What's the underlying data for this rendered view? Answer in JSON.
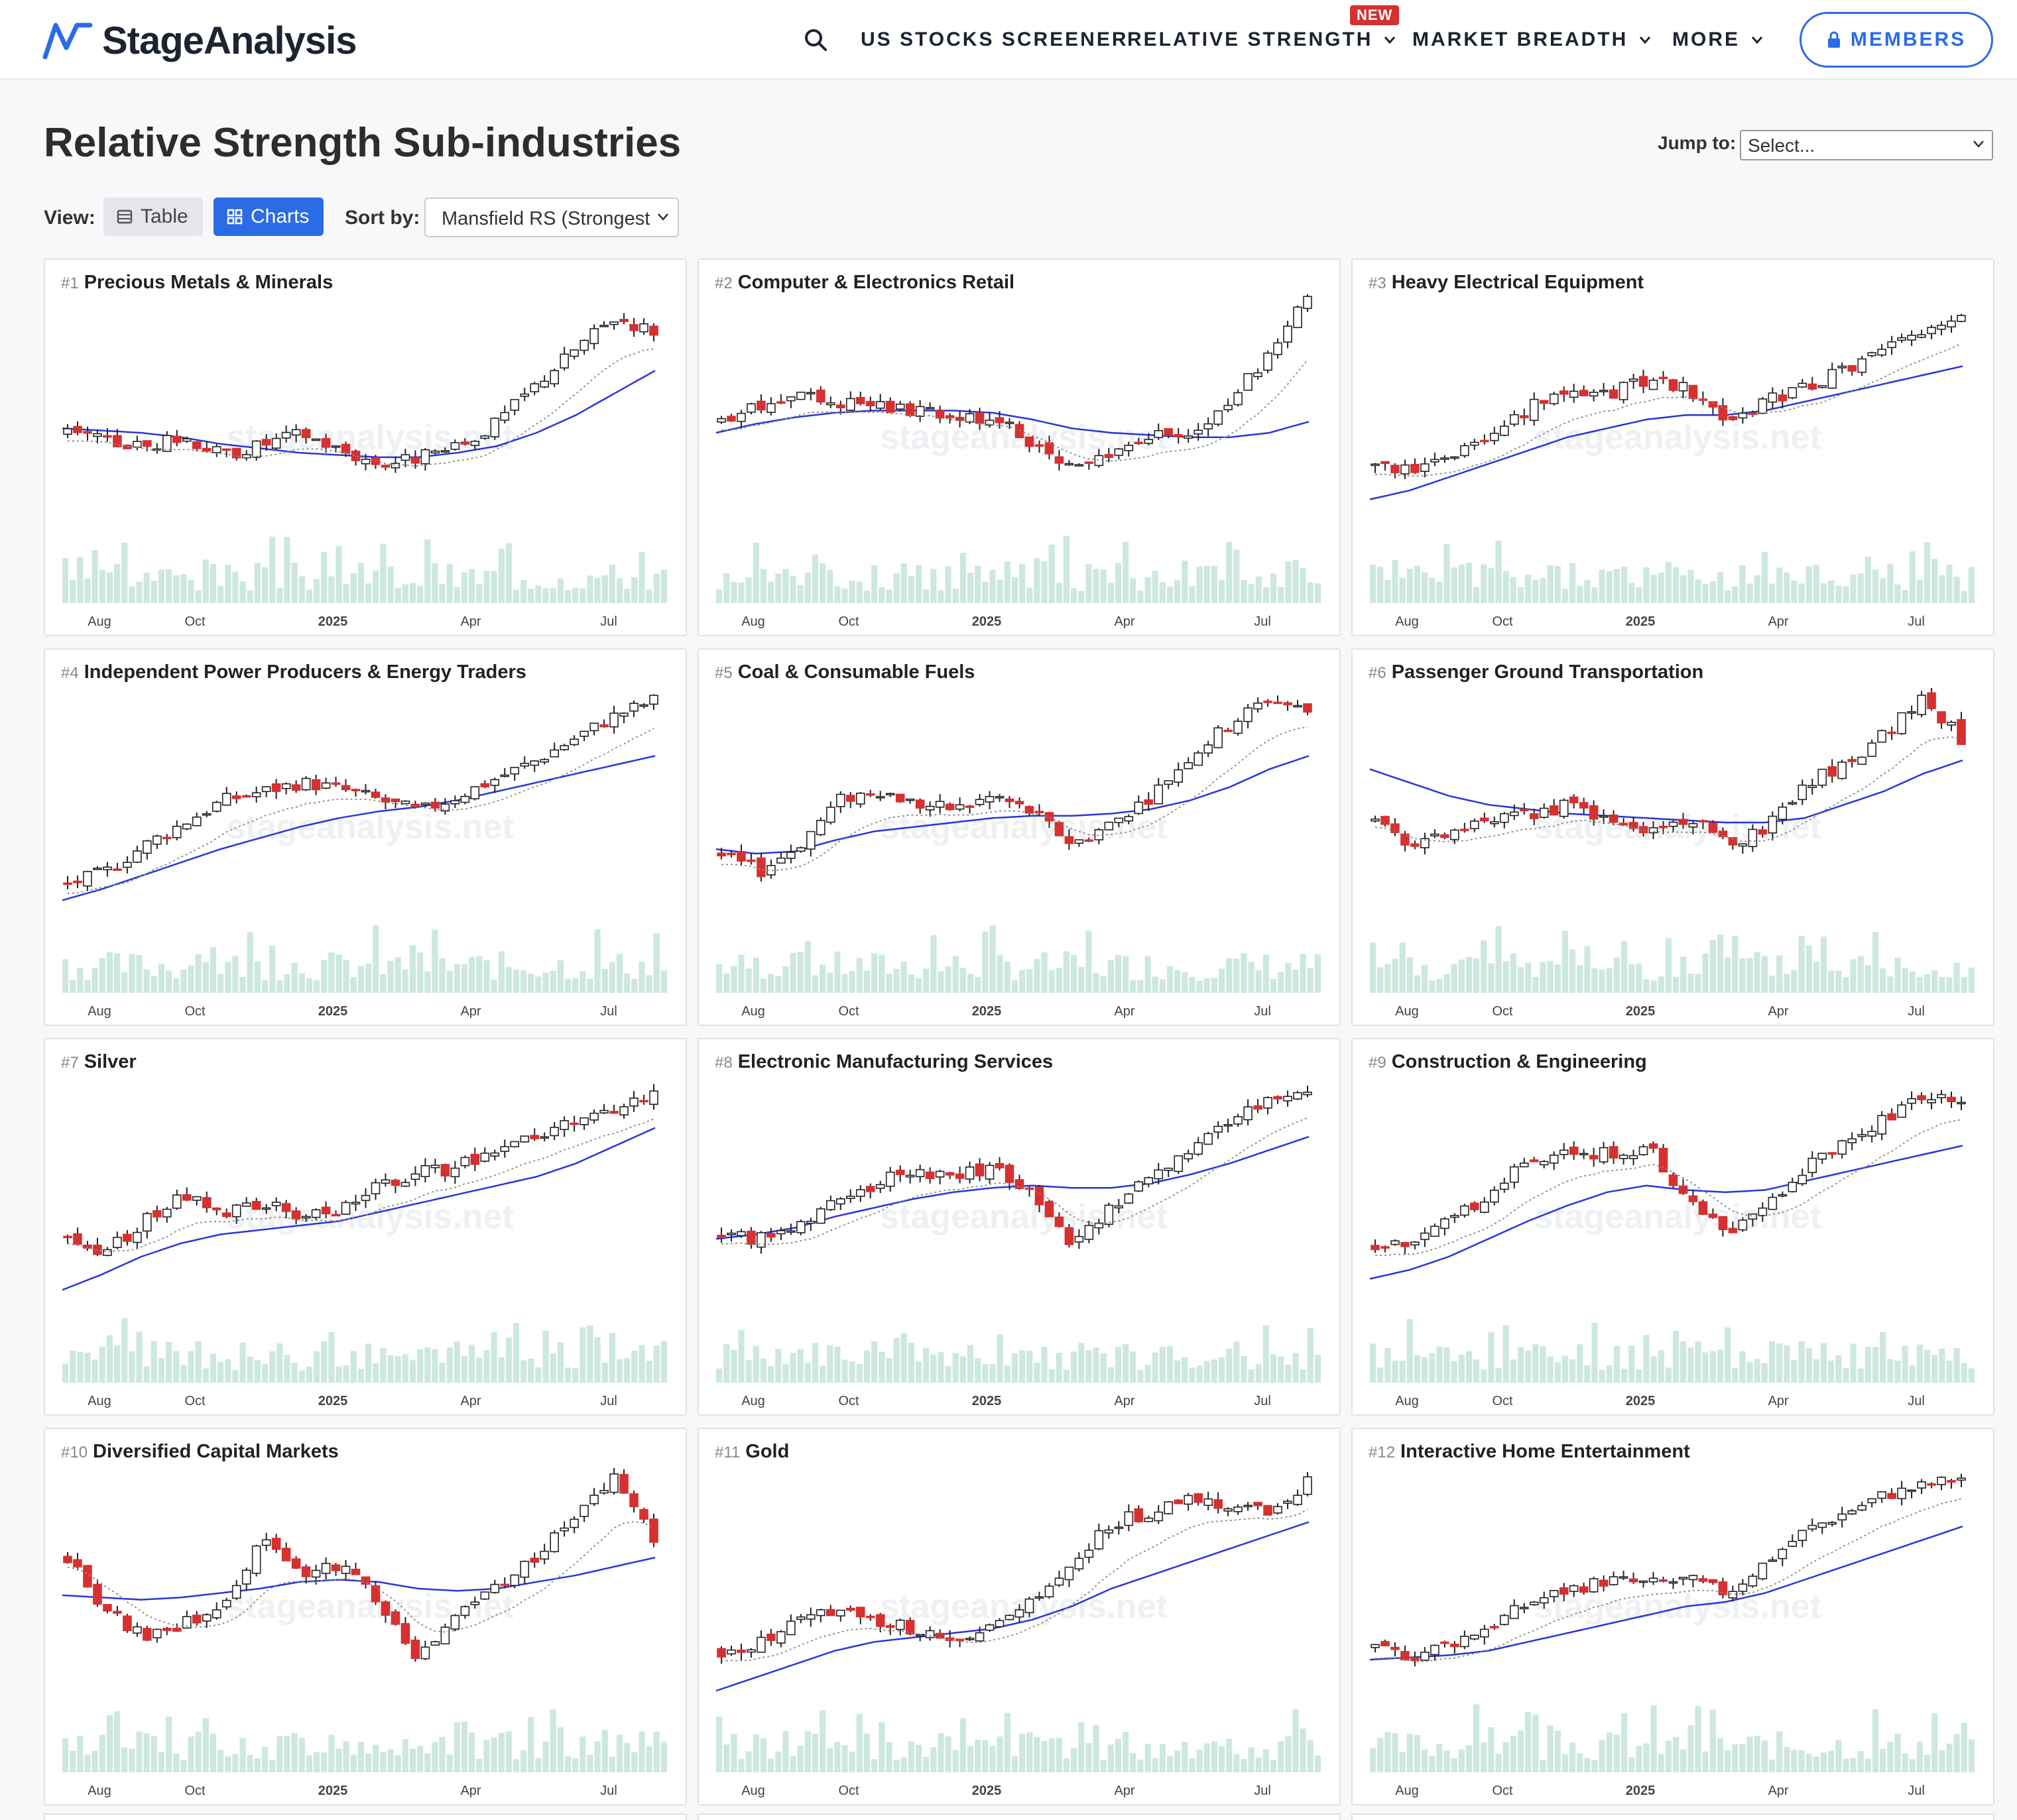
{
  "header": {
    "logo_text": "StageAnalysis",
    "nav": [
      {
        "label": "US STOCKS SCREENER"
      },
      {
        "label": "RELATIVE STRENGTH"
      },
      {
        "label": "MARKET BREADTH"
      },
      {
        "label": "MORE"
      }
    ],
    "new_badge": "NEW",
    "members_label": "MEMBERS"
  },
  "page": {
    "title": "Relative Strength Sub-industries",
    "jump_label": "Jump to:",
    "jump_value": "Select...",
    "view_label": "View:",
    "view_table": "Table",
    "view_charts": "Charts",
    "sort_label": "Sort by:",
    "sort_value": "Mansfield RS (Strongest"
  },
  "watermark": "stageanalysis.net",
  "axis_labels": [
    "Aug",
    "Oct",
    "2025",
    "Apr",
    "Jul"
  ],
  "colors": {
    "accent": "#2b6be6",
    "down": "#d63031",
    "up": "#ffffff",
    "ma_long": "#2b35d8",
    "volume": "#cde8dc"
  },
  "cards": [
    {
      "rank": "#1",
      "name": "Precious Metals & Minerals"
    },
    {
      "rank": "#2",
      "name": "Computer & Electronics Retail"
    },
    {
      "rank": "#3",
      "name": "Heavy Electrical Equipment"
    },
    {
      "rank": "#4",
      "name": "Independent Power Producers & Energy Traders"
    },
    {
      "rank": "#5",
      "name": "Coal & Consumable Fuels"
    },
    {
      "rank": "#6",
      "name": "Passenger Ground Transportation"
    },
    {
      "rank": "#7",
      "name": "Silver"
    },
    {
      "rank": "#8",
      "name": "Electronic Manufacturing Services"
    },
    {
      "rank": "#9",
      "name": "Construction & Engineering"
    },
    {
      "rank": "#10",
      "name": "Diversified Capital Markets"
    },
    {
      "rank": "#11",
      "name": "Gold"
    },
    {
      "rank": "#12",
      "name": "Interactive Home Entertainment"
    }
  ],
  "chart_data": [
    {
      "type": "candlestick",
      "title": "Precious Metals & Minerals",
      "x_ticks": [
        "Aug",
        "Oct",
        "2025",
        "Apr",
        "Jul"
      ],
      "close_profile": [
        0.4,
        0.36,
        0.34,
        0.38,
        0.3,
        0.35,
        0.4,
        0.32,
        0.26,
        0.29,
        0.33,
        0.45,
        0.62,
        0.78,
        0.92,
        0.86
      ],
      "ma_profile": [
        0.42,
        0.41,
        0.4,
        0.38,
        0.35,
        0.33,
        0.31,
        0.3,
        0.29,
        0.29,
        0.31,
        0.34,
        0.4,
        0.48,
        0.58,
        0.68
      ]
    },
    {
      "type": "candlestick",
      "title": "Computer & Electronics Retail",
      "x_ticks": [
        "Aug",
        "Oct",
        "2025",
        "Apr",
        "Jul"
      ],
      "close_profile": [
        0.45,
        0.52,
        0.56,
        0.54,
        0.52,
        0.5,
        0.48,
        0.46,
        0.35,
        0.24,
        0.3,
        0.38,
        0.4,
        0.55,
        0.75,
        1.0
      ],
      "ma_profile": [
        0.4,
        0.44,
        0.47,
        0.49,
        0.5,
        0.5,
        0.5,
        0.49,
        0.46,
        0.42,
        0.4,
        0.39,
        0.38,
        0.38,
        0.4,
        0.45
      ]
    },
    {
      "type": "candlestick",
      "title": "Heavy Electrical Equipment",
      "x_ticks": [
        "Aug",
        "Oct",
        "2025",
        "Apr",
        "Jul"
      ],
      "close_profile": [
        0.25,
        0.22,
        0.3,
        0.38,
        0.52,
        0.6,
        0.58,
        0.64,
        0.6,
        0.46,
        0.54,
        0.6,
        0.68,
        0.76,
        0.86,
        0.94
      ],
      "ma_profile": [
        0.1,
        0.14,
        0.2,
        0.26,
        0.32,
        0.38,
        0.42,
        0.46,
        0.48,
        0.48,
        0.5,
        0.54,
        0.58,
        0.62,
        0.66,
        0.7
      ]
    },
    {
      "type": "candlestick",
      "title": "Independent Power Producers & Energy Traders",
      "x_ticks": [
        "Aug",
        "Oct",
        "2025",
        "Apr",
        "Jul"
      ],
      "close_profile": [
        0.12,
        0.18,
        0.3,
        0.4,
        0.5,
        0.54,
        0.58,
        0.55,
        0.5,
        0.45,
        0.52,
        0.6,
        0.68,
        0.78,
        0.88,
        0.95
      ],
      "ma_profile": [
        0.05,
        0.1,
        0.16,
        0.22,
        0.28,
        0.33,
        0.38,
        0.42,
        0.45,
        0.47,
        0.5,
        0.54,
        0.58,
        0.62,
        0.66,
        0.7
      ]
    },
    {
      "type": "candlestick",
      "title": "Coal & Consumable Fuels",
      "x_ticks": [
        "Aug",
        "Oct",
        "2025",
        "Apr",
        "Jul"
      ],
      "close_profile": [
        0.25,
        0.18,
        0.3,
        0.5,
        0.55,
        0.48,
        0.46,
        0.52,
        0.44,
        0.3,
        0.4,
        0.52,
        0.7,
        0.84,
        0.96,
        0.9
      ],
      "ma_profile": [
        0.28,
        0.26,
        0.27,
        0.32,
        0.36,
        0.38,
        0.4,
        0.42,
        0.43,
        0.43,
        0.44,
        0.46,
        0.5,
        0.56,
        0.64,
        0.7
      ]
    },
    {
      "type": "candlestick",
      "title": "Passenger Ground Transportation",
      "x_ticks": [
        "Aug",
        "Oct",
        "2025",
        "Apr",
        "Jul"
      ],
      "close_profile": [
        0.42,
        0.3,
        0.36,
        0.4,
        0.44,
        0.48,
        0.4,
        0.36,
        0.42,
        0.3,
        0.38,
        0.58,
        0.66,
        0.8,
        0.96,
        0.78
      ],
      "ma_profile": [
        0.64,
        0.58,
        0.52,
        0.48,
        0.46,
        0.44,
        0.43,
        0.42,
        0.41,
        0.4,
        0.4,
        0.42,
        0.48,
        0.54,
        0.62,
        0.68
      ]
    },
    {
      "type": "candlestick",
      "title": "Silver",
      "x_ticks": [
        "Aug",
        "Oct",
        "2025",
        "Apr",
        "Jul"
      ],
      "close_profile": [
        0.3,
        0.22,
        0.36,
        0.48,
        0.4,
        0.44,
        0.38,
        0.42,
        0.52,
        0.58,
        0.6,
        0.7,
        0.74,
        0.8,
        0.86,
        0.94
      ],
      "ma_profile": [
        0.05,
        0.12,
        0.2,
        0.26,
        0.3,
        0.32,
        0.34,
        0.36,
        0.4,
        0.44,
        0.48,
        0.52,
        0.56,
        0.62,
        0.7,
        0.78
      ]
    },
    {
      "type": "candlestick",
      "title": "Electronic Manufacturing Services",
      "x_ticks": [
        "Aug",
        "Oct",
        "2025",
        "Apr",
        "Jul"
      ],
      "close_profile": [
        0.3,
        0.28,
        0.36,
        0.44,
        0.54,
        0.58,
        0.56,
        0.6,
        0.48,
        0.26,
        0.42,
        0.56,
        0.7,
        0.82,
        0.9,
        0.96
      ],
      "ma_profile": [
        0.28,
        0.3,
        0.33,
        0.38,
        0.42,
        0.46,
        0.49,
        0.51,
        0.52,
        0.51,
        0.51,
        0.53,
        0.57,
        0.62,
        0.68,
        0.74
      ]
    },
    {
      "type": "candlestick",
      "title": "Construction & Engineering",
      "x_ticks": [
        "Aug",
        "Oct",
        "2025",
        "Apr",
        "Jul"
      ],
      "close_profile": [
        0.25,
        0.28,
        0.36,
        0.5,
        0.64,
        0.68,
        0.66,
        0.7,
        0.46,
        0.3,
        0.44,
        0.6,
        0.72,
        0.82,
        0.92,
        0.88
      ],
      "ma_profile": [
        0.1,
        0.14,
        0.2,
        0.28,
        0.36,
        0.43,
        0.49,
        0.52,
        0.5,
        0.49,
        0.5,
        0.54,
        0.58,
        0.62,
        0.66,
        0.7
      ]
    },
    {
      "type": "candlestick",
      "title": "Diversified Capital Markets",
      "x_ticks": [
        "Aug",
        "Oct",
        "2025",
        "Apr",
        "Jul"
      ],
      "close_profile": [
        0.6,
        0.36,
        0.24,
        0.3,
        0.4,
        0.68,
        0.54,
        0.56,
        0.4,
        0.14,
        0.34,
        0.48,
        0.6,
        0.78,
        0.96,
        0.68
      ],
      "ma_profile": [
        0.43,
        0.42,
        0.41,
        0.42,
        0.44,
        0.46,
        0.49,
        0.5,
        0.49,
        0.46,
        0.45,
        0.46,
        0.49,
        0.52,
        0.56,
        0.6
      ]
    },
    {
      "type": "candlestick",
      "title": "Gold",
      "x_ticks": [
        "Aug",
        "Oct",
        "2025",
        "Apr",
        "Jul"
      ],
      "close_profile": [
        0.18,
        0.22,
        0.32,
        0.36,
        0.3,
        0.28,
        0.2,
        0.28,
        0.4,
        0.56,
        0.76,
        0.8,
        0.86,
        0.84,
        0.8,
        0.94
      ],
      "ma_profile": [
        0.0,
        0.06,
        0.12,
        0.18,
        0.22,
        0.24,
        0.26,
        0.28,
        0.32,
        0.38,
        0.46,
        0.52,
        0.58,
        0.64,
        0.7,
        0.76
      ]
    },
    {
      "type": "candlestick",
      "title": "Interactive Home Entertainment",
      "x_ticks": [
        "Aug",
        "Oct",
        "2025",
        "Apr",
        "Jul"
      ],
      "close_profile": [
        0.18,
        0.16,
        0.22,
        0.3,
        0.4,
        0.46,
        0.5,
        0.48,
        0.5,
        0.44,
        0.58,
        0.72,
        0.8,
        0.88,
        0.92,
        0.96
      ],
      "ma_profile": [
        0.14,
        0.15,
        0.16,
        0.18,
        0.22,
        0.26,
        0.3,
        0.34,
        0.38,
        0.4,
        0.44,
        0.5,
        0.56,
        0.62,
        0.68,
        0.74
      ]
    }
  ]
}
